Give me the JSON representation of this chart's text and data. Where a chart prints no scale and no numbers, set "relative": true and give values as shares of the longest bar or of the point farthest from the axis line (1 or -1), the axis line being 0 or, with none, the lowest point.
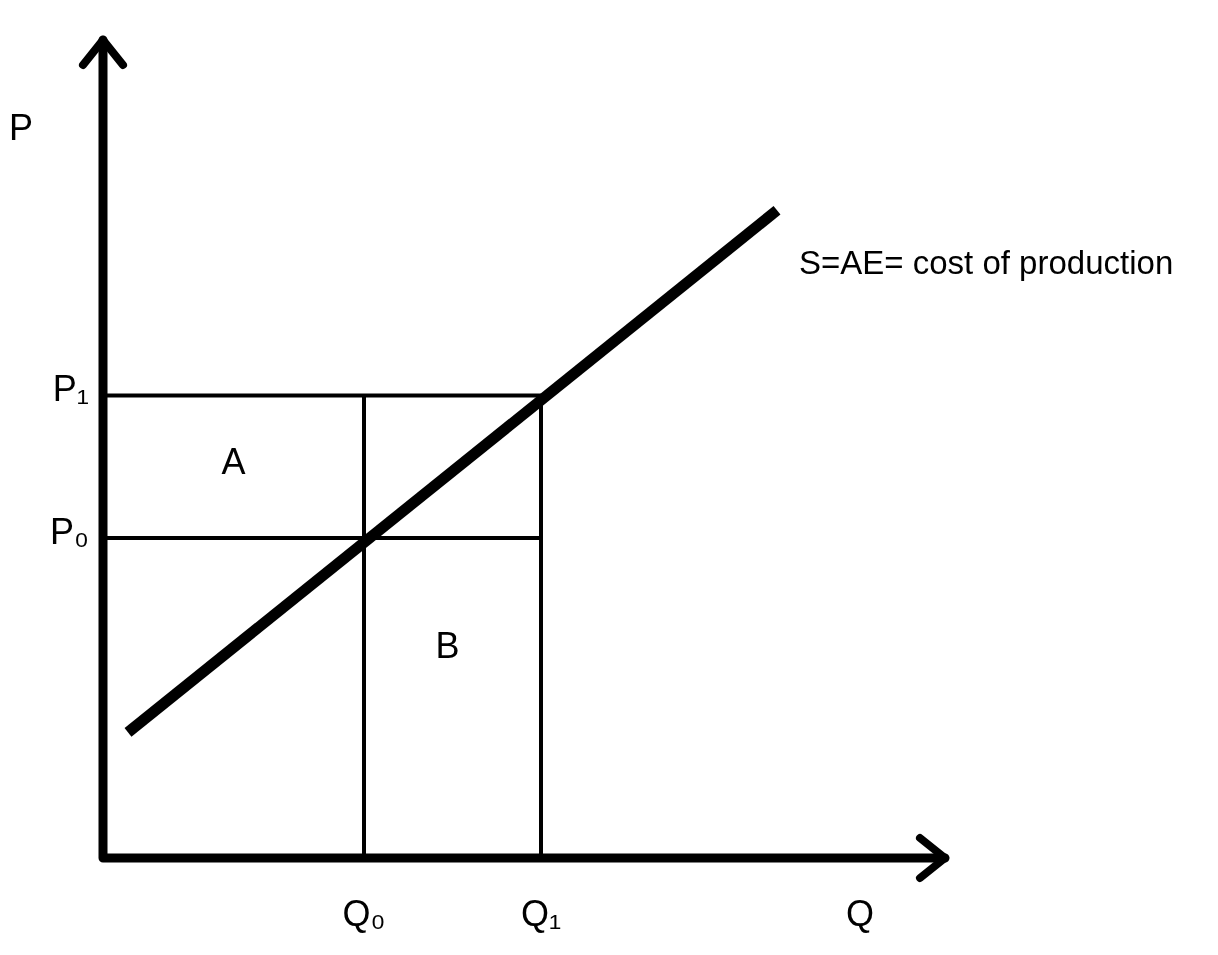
{
  "chart_data": {
    "type": "line",
    "relative": true,
    "xlabel": "Q",
    "ylabel": "P",
    "categories": [
      null,
      null,
      null,
      null,
      "Q₀",
      null,
      null,
      "Q₁",
      null,
      null,
      null,
      null,
      null
    ],
    "series": [
      {
        "name": "S=AE= cost of production",
        "color": "#000000",
        "values": [
          0.194,
          null,
          null,
          null,
          null,
          null,
          null,
          null,
          null,
          null,
          null,
          1,
          null
        ]
      }
    ],
    "ref_lines": [
      {
        "axis": "y",
        "value": 0.714,
        "label": "P₁"
      },
      {
        "axis": "y",
        "value": 0.494,
        "label": "P₀"
      },
      {
        "axis": "x",
        "value": "Q₀"
      },
      {
        "axis": "x",
        "value": "Q₁"
      }
    ],
    "annotations": [
      "A",
      "B"
    ],
    "legend": false,
    "marker": "none",
    "line_style": "solid"
  }
}
